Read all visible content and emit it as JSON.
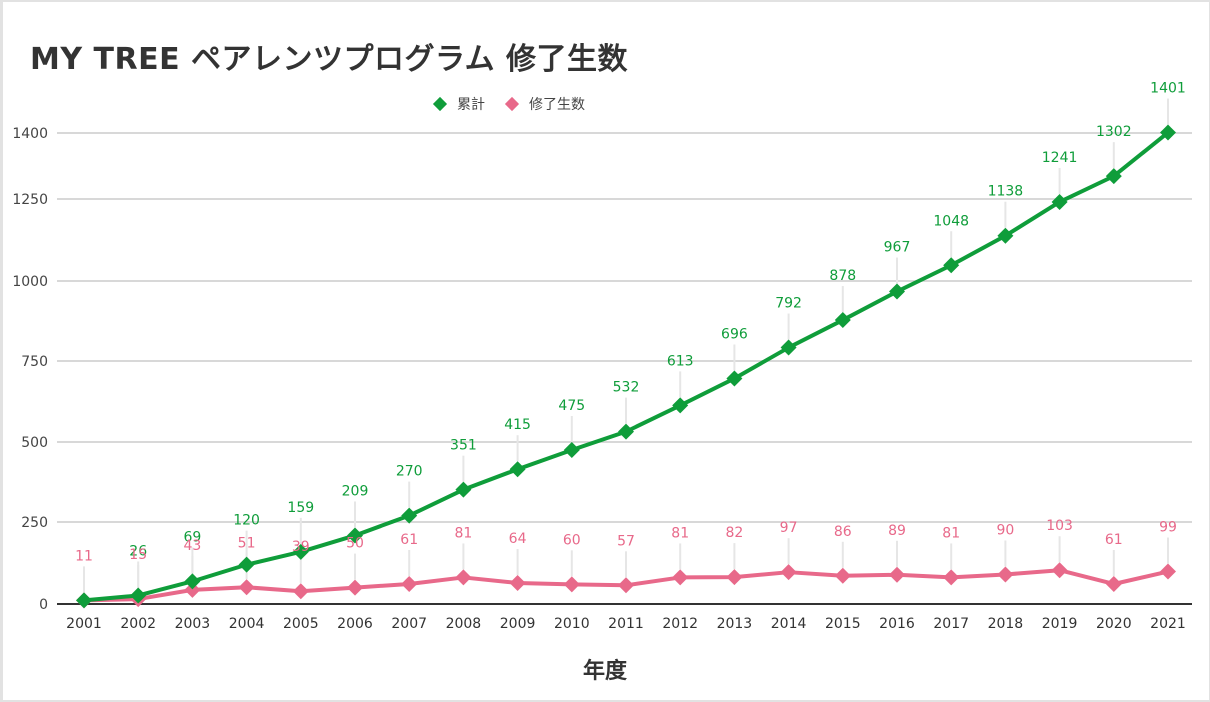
{
  "chart_data": {
    "type": "line",
    "title": "MY TREE ペアレンツプログラム 修了生数",
    "xlabel": "年度",
    "ylabel": "",
    "x": [
      "2001",
      "2002",
      "2003",
      "2004",
      "2005",
      "2006",
      "2007",
      "2008",
      "2009",
      "2010",
      "2011",
      "2012",
      "2013",
      "2014",
      "2015",
      "2016",
      "2017",
      "2018",
      "2019",
      "2020",
      "2021"
    ],
    "yticks": [
      0,
      250,
      500,
      750,
      1000,
      1250,
      1400
    ],
    "ylim": [
      0,
      1400
    ],
    "grid": true,
    "legend_position": "top-center",
    "series": [
      {
        "name": "累計",
        "color": "#0f9d3a",
        "values": [
          11,
          26,
          69,
          120,
          159,
          209,
          270,
          351,
          415,
          475,
          532,
          613,
          696,
          792,
          878,
          967,
          1048,
          1138,
          1241,
          1302,
          1401
        ],
        "labels": [
          "",
          "26",
          "69",
          "120",
          "159",
          "209",
          "270",
          "351",
          "415",
          "475",
          "532",
          "613",
          "696",
          "792",
          "878",
          "967",
          "1048",
          "1138",
          "1241",
          "1302",
          "1401"
        ]
      },
      {
        "name": "修了生数",
        "color": "#e8698a",
        "values": [
          11,
          15,
          43,
          51,
          39,
          50,
          61,
          81,
          64,
          60,
          57,
          81,
          82,
          97,
          86,
          89,
          81,
          90,
          103,
          61,
          99
        ],
        "labels": [
          "11",
          "15",
          "43",
          "51",
          "39",
          "50",
          "61",
          "81",
          "64",
          "60",
          "57",
          "81",
          "82",
          "97",
          "86",
          "89",
          "81",
          "90",
          "103",
          "61",
          "99"
        ]
      }
    ]
  },
  "legend": {
    "items": [
      {
        "label": "累計",
        "color": "#0f9d3a"
      },
      {
        "label": "修了生数",
        "color": "#e8698a"
      }
    ]
  }
}
